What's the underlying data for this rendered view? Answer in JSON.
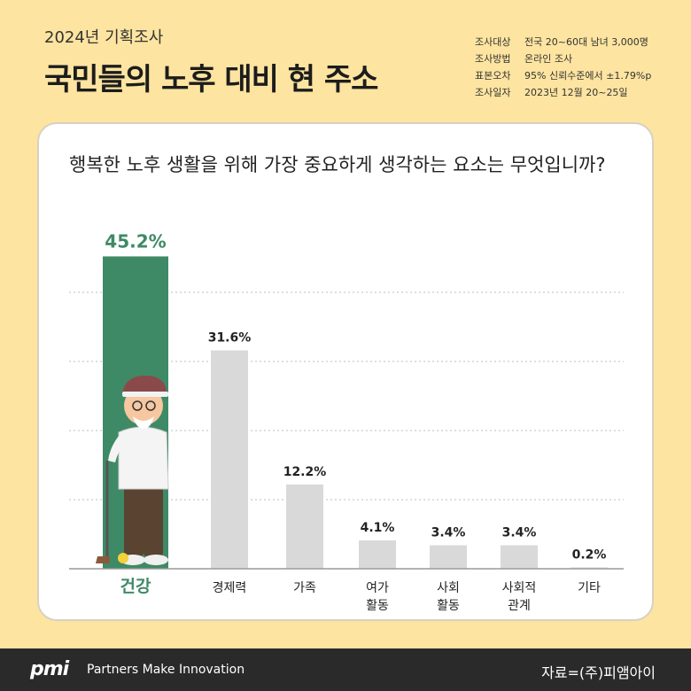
{
  "header": {
    "subtitle": "2024년 기획조사",
    "title": "국민들의 노후 대비 현 주소",
    "survey_info": [
      {
        "key": "조사대상",
        "value": "전국 20~60대 남녀 3,000명"
      },
      {
        "key": "조사방법",
        "value": "온라인 조사"
      },
      {
        "key": "표본오차",
        "value": "95% 신뢰수준에서 ±1.79%p"
      },
      {
        "key": "조사일자",
        "value": "2023년 12월 20~25일"
      }
    ]
  },
  "question": "행복한 노후 생활을 위해 가장 중요하게 생각하는 요소는 무엇입니까?",
  "colors": {
    "highlight": "#3f8a66",
    "bar": "#d9d9d9",
    "background": "#fde4a0",
    "footer": "#2a2a2a"
  },
  "chart_data": {
    "type": "bar",
    "categories": [
      [
        "건강"
      ],
      [
        "경제력"
      ],
      [
        "가족"
      ],
      [
        "여가",
        "활동"
      ],
      [
        "사회",
        "활동"
      ],
      [
        "사회적",
        "관계"
      ],
      [
        "기타"
      ]
    ],
    "values": [
      45.2,
      31.6,
      12.2,
      4.1,
      3.4,
      3.4,
      0.2
    ],
    "value_labels": [
      "45.2%",
      "31.6%",
      "12.2%",
      "4.1%",
      "3.4%",
      "3.4%",
      "0.2%"
    ],
    "highlight_index": 0,
    "ylim": [
      0,
      50
    ],
    "grid": true
  },
  "footer": {
    "logo": "pmi",
    "tagline": "Partners Make Innovation",
    "source": "자료=(주)피앰아이"
  }
}
